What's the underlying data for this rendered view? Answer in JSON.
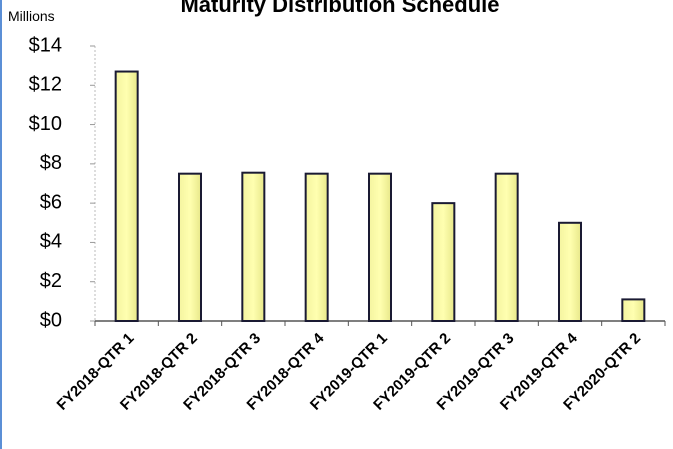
{
  "chart_data": {
    "type": "bar",
    "title": "Maturity Distribution Schedule",
    "y_label": "Millions",
    "categories": [
      "FY2018-QTR 1",
      "FY2018-QTR 2",
      "FY2018-QTR 3",
      "FY2018-QTR 4",
      "FY2019-QTR 1",
      "FY2019-QTR 2",
      "FY2019-QTR 3",
      "FY2019-QTR 4",
      "FY2020-QTR 2"
    ],
    "values": [
      12.7,
      7.5,
      7.55,
      7.5,
      7.5,
      6.0,
      7.5,
      5.0,
      1.1
    ],
    "color": "#ffff99",
    "ylim": [
      0,
      14
    ],
    "yticks": [
      {
        "value": 0,
        "label": "$0"
      },
      {
        "value": 2,
        "label": "$2"
      },
      {
        "value": 4,
        "label": "$4"
      },
      {
        "value": 6,
        "label": "$6"
      },
      {
        "value": 8,
        "label": "$8"
      },
      {
        "value": 10,
        "label": "$10"
      },
      {
        "value": 12,
        "label": "$12"
      },
      {
        "value": 14,
        "label": "$14"
      }
    ],
    "grid": false
  }
}
